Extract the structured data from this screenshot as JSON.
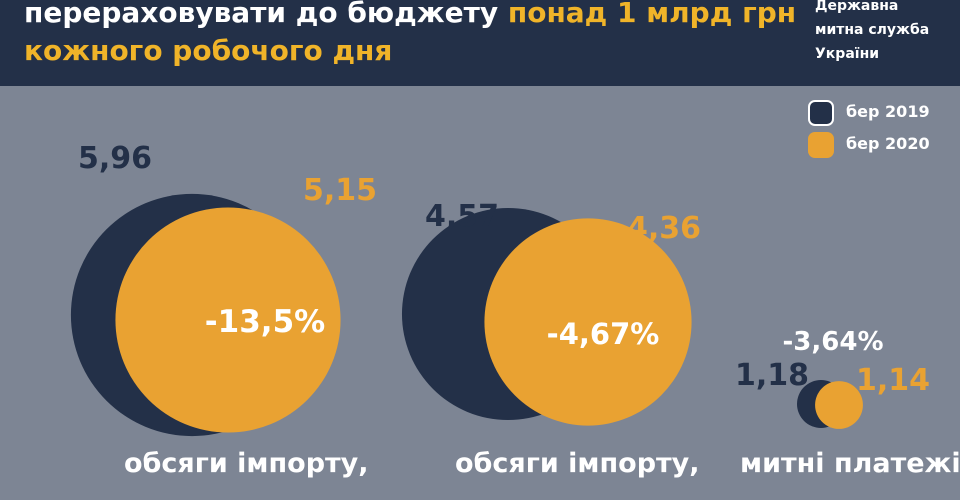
{
  "header": {
    "line1_plain": "перераховувати до бюджету ",
    "line1_accent": "понад 1 млрд грн",
    "line2_accent": "кожного робочого дня",
    "agency": [
      "Державна",
      "митна служба",
      "України"
    ]
  },
  "colors": {
    "navy": "#233048",
    "accent": "#f0b429",
    "background": "#7d8594",
    "white": "#ffffff"
  },
  "chart_data": {
    "type": "bubble",
    "series": [
      {
        "name": "бер 2019",
        "color": "#233048"
      },
      {
        "name": "бер 2020",
        "color": "#e9a232"
      }
    ],
    "groups": [
      {
        "category": "обсяги імпорту,",
        "value_2019": "5,96",
        "value_2020": "5,15",
        "v2019": 5.96,
        "v2020": 5.15,
        "change": "-13,5%"
      },
      {
        "category": "обсяги імпорту,",
        "value_2019": "4,57",
        "value_2020": "4,36",
        "v2019": 4.57,
        "v2020": 4.36,
        "change": "-4,67%"
      },
      {
        "category": "митні платежі,",
        "value_2019": "1,18",
        "value_2020": "1,14",
        "v2019": 1.18,
        "v2020": 1.14,
        "change": "-3,64%"
      }
    ]
  }
}
